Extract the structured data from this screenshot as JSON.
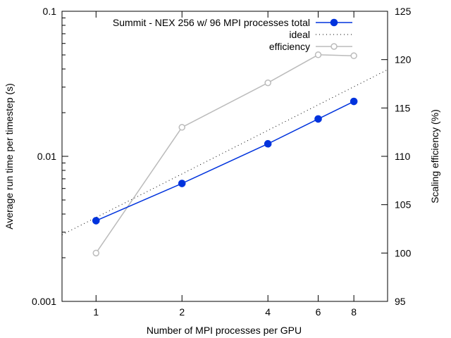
{
  "chart_data": {
    "type": "line",
    "xlabel": "Number of MPI processes per GPU",
    "ylabel": "Average run time per timestep (s)",
    "y2label": "Scaling efficiency (%)",
    "x_scale": "log2",
    "y_scale": "log10",
    "xlim": [
      0.76,
      10.5
    ],
    "ylim": [
      0.001,
      0.1
    ],
    "y2lim": [
      95,
      125
    ],
    "x_ticks": [
      1,
      2,
      4,
      6,
      8
    ],
    "x_tick_labels": [
      "1",
      "2",
      "4",
      "6",
      "8"
    ],
    "y_ticks": [
      0.001,
      0.01,
      0.1
    ],
    "y_tick_labels": [
      "0.001",
      "0.01",
      "0.1"
    ],
    "y2_ticks": [
      95,
      100,
      105,
      110,
      115,
      120,
      125
    ],
    "y2_tick_labels": [
      "95",
      "100",
      "105",
      "110",
      "115",
      "120",
      "125"
    ],
    "legend_position": "top-right",
    "series": [
      {
        "name": "Summit - NEX 256 w/ 96 MPI processes total",
        "axis": "left",
        "color": "#0033dd",
        "style": "solid-filled-circles",
        "x": [
          1,
          2,
          4,
          6,
          8
        ],
        "y": [
          0.0036,
          0.0065,
          0.0122,
          0.0181,
          0.0239
        ]
      },
      {
        "name": "ideal",
        "axis": "left",
        "color": "#000000",
        "style": "dotted",
        "x": [
          0.76,
          10.5
        ],
        "y": [
          0.00288,
          0.0396
        ]
      },
      {
        "name": "efficiency",
        "axis": "right",
        "color": "#bbbbbb",
        "style": "solid-open-circles",
        "x": [
          1,
          2,
          4,
          6,
          8
        ],
        "y": [
          100.0,
          113.0,
          117.6,
          120.5,
          120.4
        ]
      }
    ]
  }
}
